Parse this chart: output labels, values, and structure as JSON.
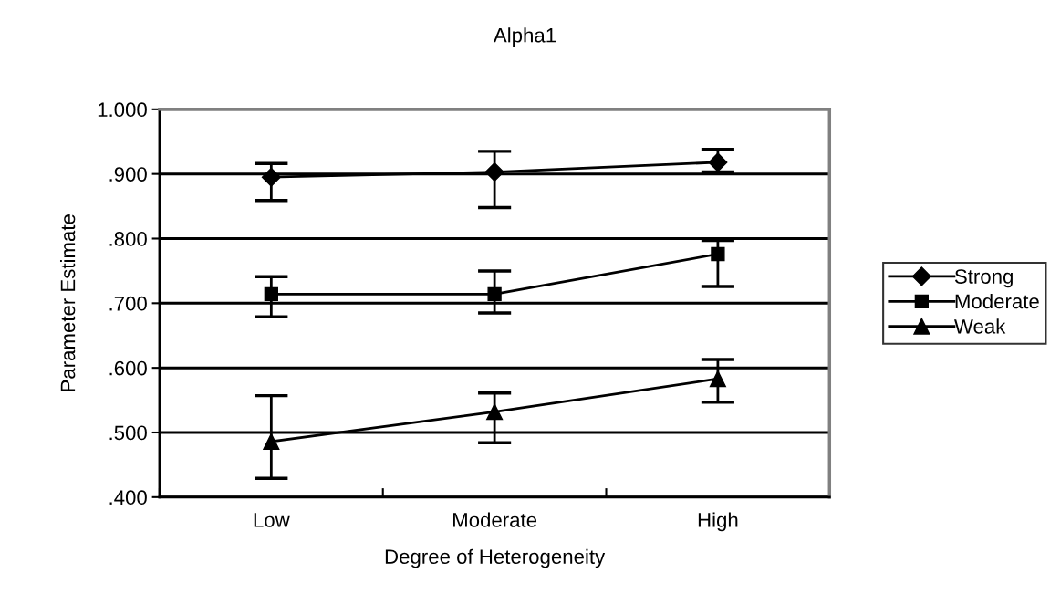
{
  "chart_data": {
    "type": "line",
    "title": "Alpha1",
    "xlabel": "Degree of Heterogeneity",
    "ylabel": "Parameter Estimate",
    "categories": [
      "Low",
      "Moderate",
      "High"
    ],
    "series": [
      {
        "name": "Strong",
        "color": "#000000",
        "marker": "diamond",
        "values": [
          0.895,
          0.903,
          0.918
        ],
        "errors": [
          [
            0.859,
            0.916
          ],
          [
            0.848,
            0.935
          ],
          [
            0.903,
            0.938
          ]
        ]
      },
      {
        "name": "Moderate",
        "color": "#000000",
        "marker": "square",
        "values": [
          0.714,
          0.714,
          0.776
        ],
        "errors": [
          [
            0.679,
            0.741
          ],
          [
            0.685,
            0.75
          ],
          [
            0.726,
            0.797
          ]
        ]
      },
      {
        "name": "Weak",
        "color": "#000000",
        "marker": "triangle",
        "values": [
          0.486,
          0.532,
          0.583
        ],
        "errors": [
          [
            0.429,
            0.557
          ],
          [
            0.484,
            0.561
          ],
          [
            0.547,
            0.613
          ]
        ]
      }
    ],
    "ylim": [
      0.4,
      1.0
    ],
    "yticks": [
      {
        "value": 0.4,
        "label": ".400"
      },
      {
        "value": 0.5,
        "label": ".500"
      },
      {
        "value": 0.6,
        "label": ".600"
      },
      {
        "value": 0.7,
        "label": ".700"
      },
      {
        "value": 0.8,
        "label": ".800"
      },
      {
        "value": 0.9,
        "label": ".900"
      },
      {
        "value": 1.0,
        "label": "1.000"
      }
    ],
    "grid": "y",
    "legend": "right",
    "line_style": "solid"
  }
}
